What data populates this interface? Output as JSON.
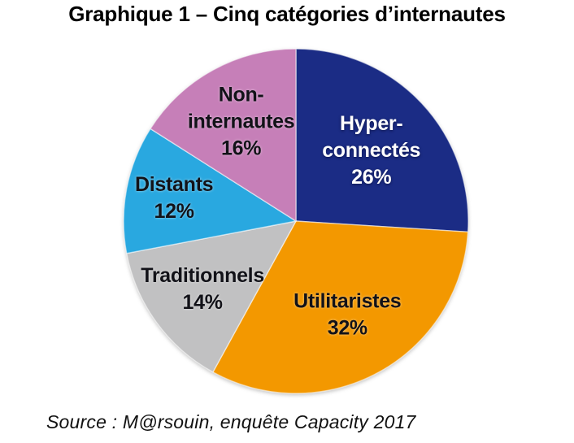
{
  "title": "Graphique 1 – Cinq catégories d’internautes",
  "source": "Source : M@rsouin, enquête Capacity 2017",
  "colors": {
    "background": "#FFFFFF",
    "title_text": "#000000",
    "label_dark": "#121218",
    "label_light": "#FFFFFF",
    "slice_separator": "#FFFFFF"
  },
  "chart_data": {
    "type": "pie",
    "title": "Graphique 1 – Cinq catégories d’internautes",
    "source": "Source : M@rsouin, enquête Capacity 2017",
    "unit": "%",
    "start_angle_deg": 0,
    "direction": "clockwise",
    "legend": "none",
    "labels_inside": true,
    "categories": [
      "Hyper-connectés",
      "Utilitaristes",
      "Traditionnels",
      "Distants",
      "Non-internautes"
    ],
    "values": [
      26,
      32,
      14,
      12,
      16
    ],
    "slices": [
      {
        "label": "Hyper-connectés",
        "value": 26,
        "color": "#1B2C85",
        "text_color": "#FFFFFF",
        "label_lines": [
          "Hyper-",
          "connectés",
          "26%"
        ],
        "label_r": 0.6
      },
      {
        "label": "Utilitaristes",
        "value": 32,
        "color": "#F39800",
        "text_color": "#121218",
        "label_lines": [
          "Utilitaristes",
          "32%"
        ],
        "label_r": 0.62
      },
      {
        "label": "Traditionnels",
        "value": 14,
        "color": "#C1C1C2",
        "text_color": "#121218",
        "label_lines": [
          "Traditionnels",
          "14%"
        ],
        "label_r": 0.67
      },
      {
        "label": "Distants",
        "value": 12,
        "color": "#29A8E0",
        "text_color": "#121218",
        "label_lines": [
          "Distants",
          "12%"
        ],
        "label_r": 0.72
      },
      {
        "label": "Non-internautes",
        "value": 16,
        "color": "#C67FB8",
        "text_color": "#121218",
        "label_lines": [
          "Non-",
          "internautes",
          "16%"
        ],
        "label_r": 0.66
      }
    ]
  }
}
